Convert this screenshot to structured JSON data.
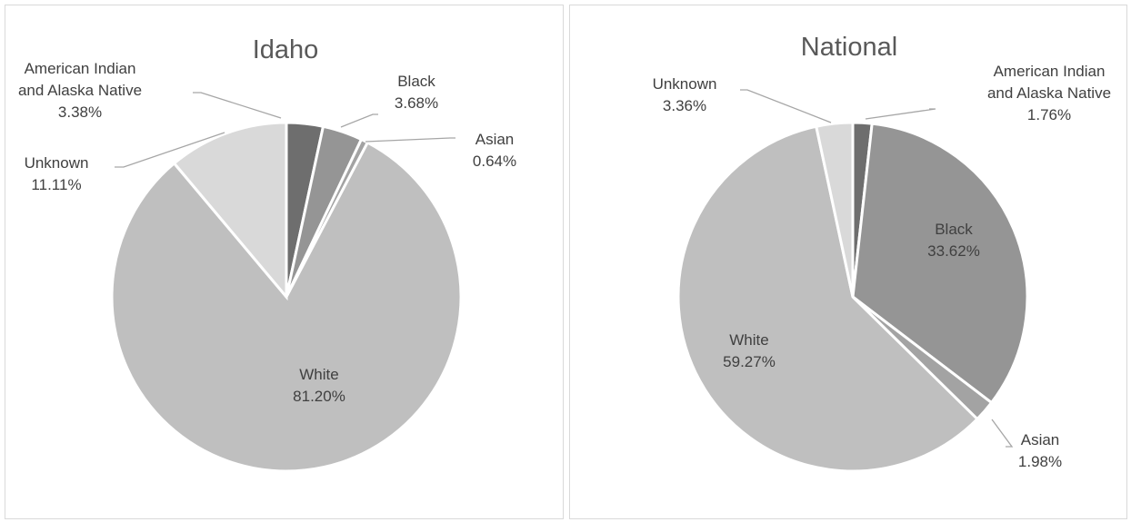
{
  "colors": {
    "American Indian and Alaska Native": "#6e6e6e",
    "Black": "#959595",
    "Asian": "#a3a3a3",
    "White": "#bfbfbf",
    "Unknown": "#d9d9d9",
    "label_text": "#404040",
    "title_text": "#595959",
    "leader_line": "#a6a6a6",
    "slice_border": "#ffffff"
  },
  "chart_data": [
    {
      "type": "pie",
      "title": "Idaho",
      "categories": [
        "American Indian and Alaska Native",
        "Black",
        "Asian",
        "White",
        "Unknown"
      ],
      "values": [
        3.38,
        3.68,
        0.64,
        81.2,
        11.11
      ],
      "value_labels": [
        "3.38%",
        "3.68%",
        "0.64%",
        "81.20%",
        "11.11%"
      ],
      "start_angle_deg": 0,
      "direction": "clockwise"
    },
    {
      "type": "pie",
      "title": "National",
      "categories": [
        "American Indian and Alaska Native",
        "Black",
        "Asian",
        "White",
        "Unknown"
      ],
      "values": [
        1.76,
        33.62,
        1.98,
        59.27,
        3.36
      ],
      "value_labels": [
        "1.76%",
        "33.62%",
        "1.98%",
        "59.27%",
        "3.36%"
      ],
      "start_angle_deg": 0,
      "direction": "clockwise"
    }
  ]
}
